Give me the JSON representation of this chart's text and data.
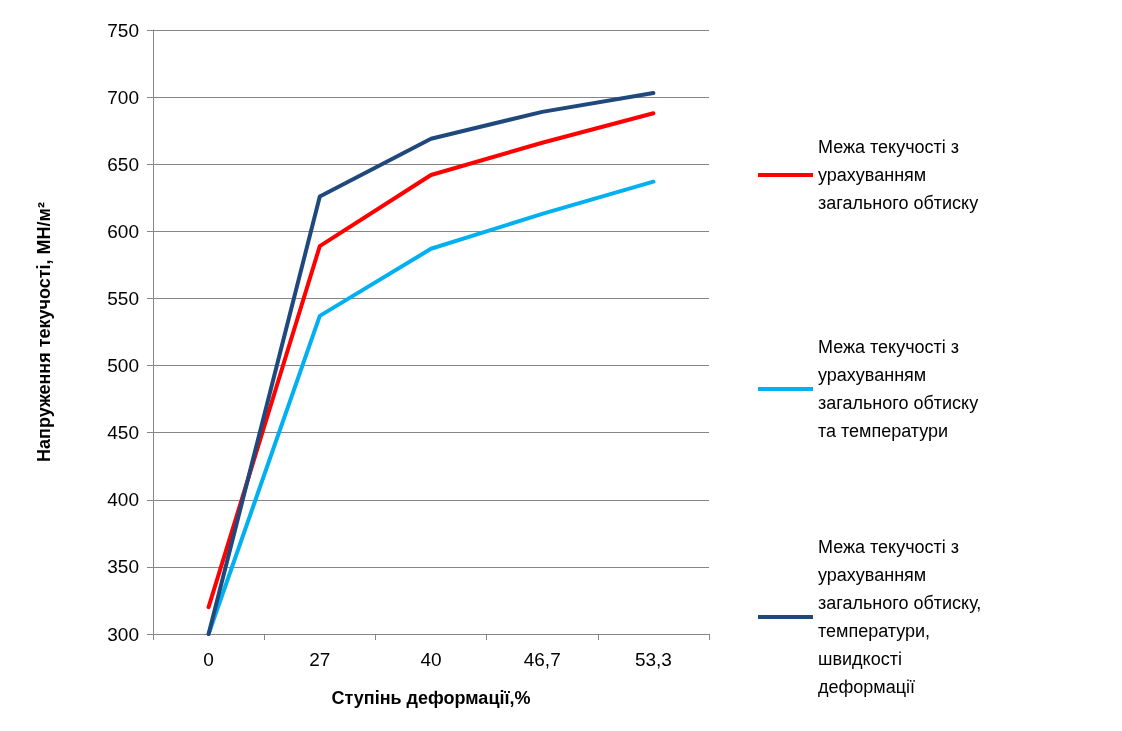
{
  "chart_data": {
    "type": "line",
    "xlabel": "Ступінь деформації,%",
    "ylabel": "Напруження текучості, МН/м²",
    "categories": [
      "0",
      "27",
      "40",
      "46,7",
      "53,3"
    ],
    "series": [
      {
        "name": "Межа текучості з урахуванням загального обтиску",
        "color": "#ff0000",
        "values": [
          320,
          589,
          642,
          666,
          688
        ]
      },
      {
        "name": "Межа текучості з урахуванням загального обтиску та температури",
        "color": "#00b0f0",
        "values": [
          300,
          537,
          587,
          613,
          637
        ]
      },
      {
        "name": "Межа текучості з урахуванням загального обтиску, температури, швидкості деформації",
        "color": "#1f497d",
        "values": [
          300,
          626,
          669,
          689,
          703
        ]
      }
    ],
    "ylim": [
      300,
      750
    ],
    "yticks": [
      300,
      350,
      400,
      450,
      500,
      550,
      600,
      650,
      700,
      750
    ],
    "grid": "y",
    "legend": "right",
    "marker": "none",
    "line_style": "solid"
  }
}
